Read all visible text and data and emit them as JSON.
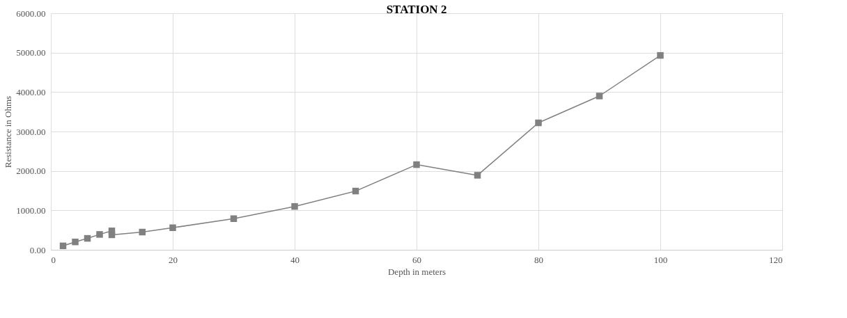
{
  "chart_data": {
    "type": "line",
    "title": "STATION 2",
    "xlabel": "Depth in meters",
    "ylabel": "Resistance in Ohms",
    "x": [
      2,
      4,
      6,
      8,
      10,
      10,
      15,
      20,
      30,
      40,
      50,
      60,
      70,
      80,
      90,
      100
    ],
    "series": [
      {
        "color": "#808080",
        "values": [
          100,
          200,
          290,
          390,
          480,
          380,
          450,
          560,
          790,
          1100,
          1490,
          2160,
          1890,
          3220,
          3900,
          4930
        ]
      }
    ],
    "xlim": [
      0,
      120
    ],
    "xticks": [
      0,
      20,
      40,
      60,
      80,
      100,
      120
    ],
    "ylim": [
      0,
      6000
    ],
    "yticks": [
      {
        "value": 0,
        "label": "0.00"
      },
      {
        "value": 1000,
        "label": "1000.00"
      },
      {
        "value": 2000,
        "label": "2000.00"
      },
      {
        "value": 3000,
        "label": "3000.00"
      },
      {
        "value": 4000,
        "label": "4000.00"
      },
      {
        "value": 5000,
        "label": "5000.00"
      },
      {
        "value": 6000,
        "label": "6000.00"
      }
    ],
    "grid": true,
    "marker": "square",
    "line_style": "solid"
  }
}
